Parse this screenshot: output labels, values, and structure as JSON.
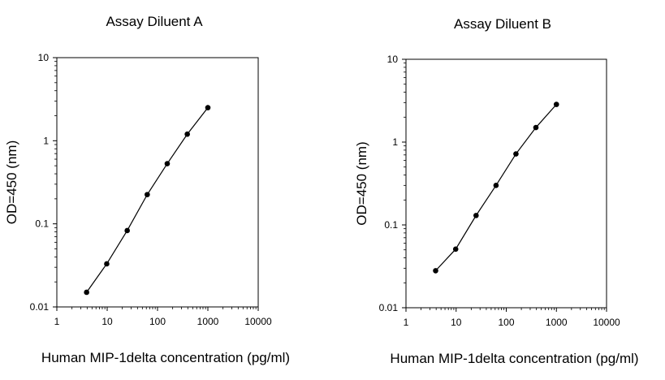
{
  "chart_data": [
    {
      "type": "line",
      "title": "Assay Diluent A",
      "xlabel": "Human MIP-1delta concentration (pg/ml)",
      "ylabel": "OD=450 (nm)",
      "xscale": "log",
      "yscale": "log",
      "xlim": [
        1,
        10000
      ],
      "ylim": [
        0.01,
        10
      ],
      "xticks": [
        "1",
        "10",
        "100",
        "1000",
        "10000"
      ],
      "yticks": [
        "0.01",
        "0.1",
        "1",
        "10"
      ],
      "grid": false,
      "legend": "none",
      "series": [
        {
          "color": "#000000",
          "marker": "circle",
          "x": [
            3.9,
            9.8,
            25,
            62.5,
            156,
            390,
            1000
          ],
          "y": [
            0.015,
            0.033,
            0.083,
            0.225,
            0.53,
            1.2,
            2.5
          ]
        }
      ]
    },
    {
      "type": "line",
      "title": "Assay Diluent B",
      "xlabel": "Human MIP-1delta concentration (pg/ml)",
      "ylabel": "OD=450 (nm)",
      "xscale": "log",
      "yscale": "log",
      "xlim": [
        1,
        10000
      ],
      "ylim": [
        0.01,
        10
      ],
      "xticks": [
        "1",
        "10",
        "100",
        "1000",
        "10000"
      ],
      "yticks": [
        "0.01",
        "0.1",
        "1",
        "10"
      ],
      "grid": false,
      "legend": "none",
      "series": [
        {
          "color": "#000000",
          "marker": "circle",
          "x": [
            3.9,
            9.8,
            25,
            62.5,
            156,
            390,
            1000
          ],
          "y": [
            0.028,
            0.051,
            0.13,
            0.3,
            0.72,
            1.5,
            2.85
          ]
        }
      ]
    }
  ]
}
